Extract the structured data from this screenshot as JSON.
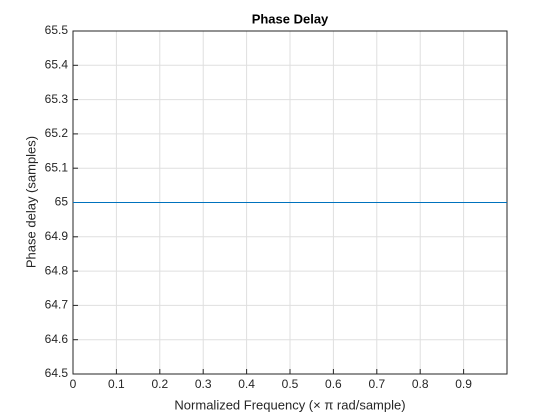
{
  "chart_data": {
    "type": "line",
    "title": "Phase Delay",
    "xlabel": "Normalized  Frequency    (× π  rad/sample)",
    "ylabel": "Phase delay (samples)",
    "x": [
      0,
      1
    ],
    "series": [
      {
        "color": "#0072bd",
        "values": [
          65,
          65
        ]
      }
    ],
    "xlim": [
      0,
      1
    ],
    "xticks": [
      0,
      0.1,
      0.2,
      0.3,
      0.4,
      0.5,
      0.6,
      0.7,
      0.8,
      0.9
    ],
    "ylim": [
      64.5,
      65.5
    ],
    "yticks": [
      64.5,
      64.6,
      64.7,
      64.8,
      64.9,
      65,
      65.1,
      65.2,
      65.3,
      65.4,
      65.5
    ],
    "grid": true
  }
}
